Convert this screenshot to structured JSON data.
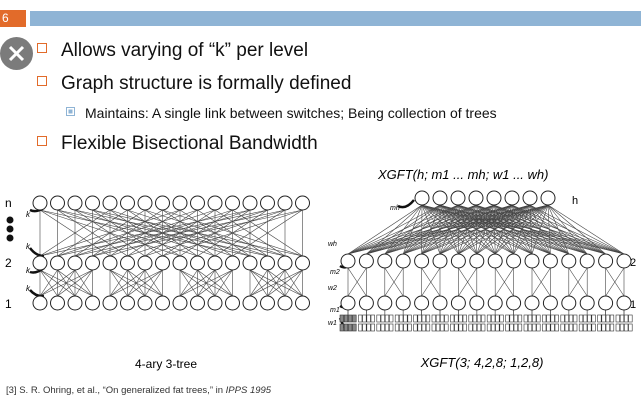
{
  "slide": {
    "number": "6",
    "bullets": [
      "Allows varying of “k” per level",
      "Graph structure is formally defined",
      "Flexible Bisectional Bandwidth"
    ],
    "sub_bullet": "Maintains: A single link between switches; Being collection of trees"
  },
  "left_diagram": {
    "caption": "4-ary 3-tree",
    "level_labels": [
      "n",
      "2",
      "1"
    ],
    "edge_label": "k"
  },
  "right_diagram": {
    "formula": "XGFT(h; m1 ... mh; w1 ... wh)",
    "caption": "XGFT(3; 4,2,8; 1,2,8)",
    "level_labels": [
      "h",
      "2",
      "1"
    ],
    "m_labels": [
      "mh",
      "m2",
      "m1"
    ],
    "w_labels": [
      "wh",
      "w2",
      "w1"
    ]
  },
  "citation": {
    "prefix": "[3] S. R. Ohring, et al., “On generalized fat trees,” in ",
    "venue": "IPPS 1995"
  }
}
